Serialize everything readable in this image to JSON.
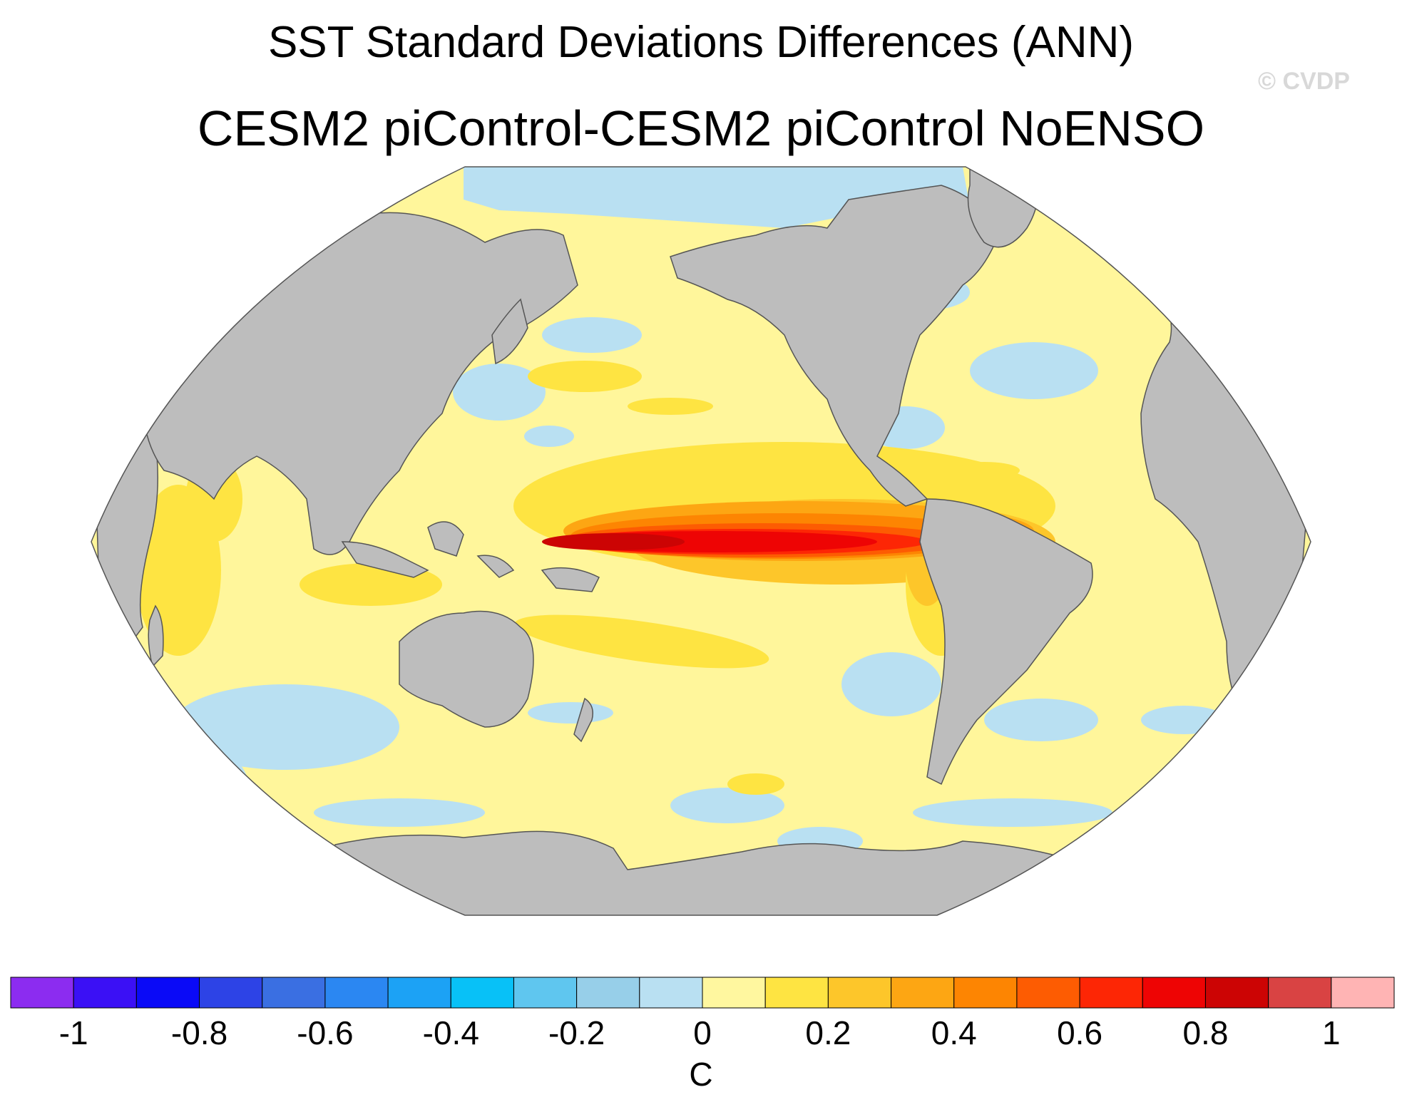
{
  "title": "SST Standard Deviations Differences (ANN)",
  "subtitle": "CESM2 piControl-CESM2 piControl NoENSO",
  "watermark": "© CVDP",
  "colors": {
    "land": "#bdbdbd",
    "ocean_background": "#fff69b",
    "colorbar": [
      "#8c2cf0",
      "#3b10f5",
      "#0a0af7",
      "#2d43e6",
      "#3a6fe2",
      "#2b87f2",
      "#1ca2f5",
      "#08c1f7",
      "#5fc6ef",
      "#97cfe9",
      "#b9e0f2",
      "#fff79f",
      "#fee442",
      "#fdc62a",
      "#fda613",
      "#fd8502",
      "#fd5c02",
      "#fd2605",
      "#ee0404",
      "#cc0404",
      "#d94343",
      "#ffb4b4"
    ]
  },
  "legend": {
    "tick_labels": [
      "-1",
      "-0.8",
      "-0.6",
      "-0.4",
      "-0.2",
      "0",
      "0.2",
      "0.4",
      "0.6",
      "0.8",
      "1"
    ],
    "units": "C"
  },
  "chart_data": {
    "type": "heatmap",
    "title": "SST Standard Deviations Differences (ANN)",
    "subtitle": "CESM2 piControl-CESM2 piControl NoENSO",
    "variable": "SST standard deviation difference",
    "units": "C",
    "projection": "Robinson, Pacific-centered",
    "contour_levels": [
      -1,
      -0.9,
      -0.8,
      -0.7,
      -0.6,
      -0.5,
      -0.4,
      -0.3,
      -0.2,
      -0.1,
      0,
      0.1,
      0.2,
      0.3,
      0.4,
      0.5,
      0.6,
      0.7,
      0.8,
      0.9,
      1
    ],
    "range": [
      -1,
      1
    ],
    "features": [
      {
        "region": "Equatorial central-eastern Pacific (ENSO region)",
        "value_range": [
          0.5,
          0.9
        ]
      },
      {
        "region": "Eastern Pacific near South American coast",
        "value_range": [
          0.4,
          0.6
        ]
      },
      {
        "region": "Western Indian Ocean",
        "value_range": [
          0.1,
          0.3
        ]
      },
      {
        "region": "North Pacific mid-latitudes",
        "value_range": [
          0.1,
          0.2
        ]
      },
      {
        "region": "Southern Ocean patches",
        "value_range": [
          -0.1,
          0
        ]
      },
      {
        "region": "Most other ocean areas",
        "value_range": [
          0,
          0.1
        ]
      }
    ]
  }
}
